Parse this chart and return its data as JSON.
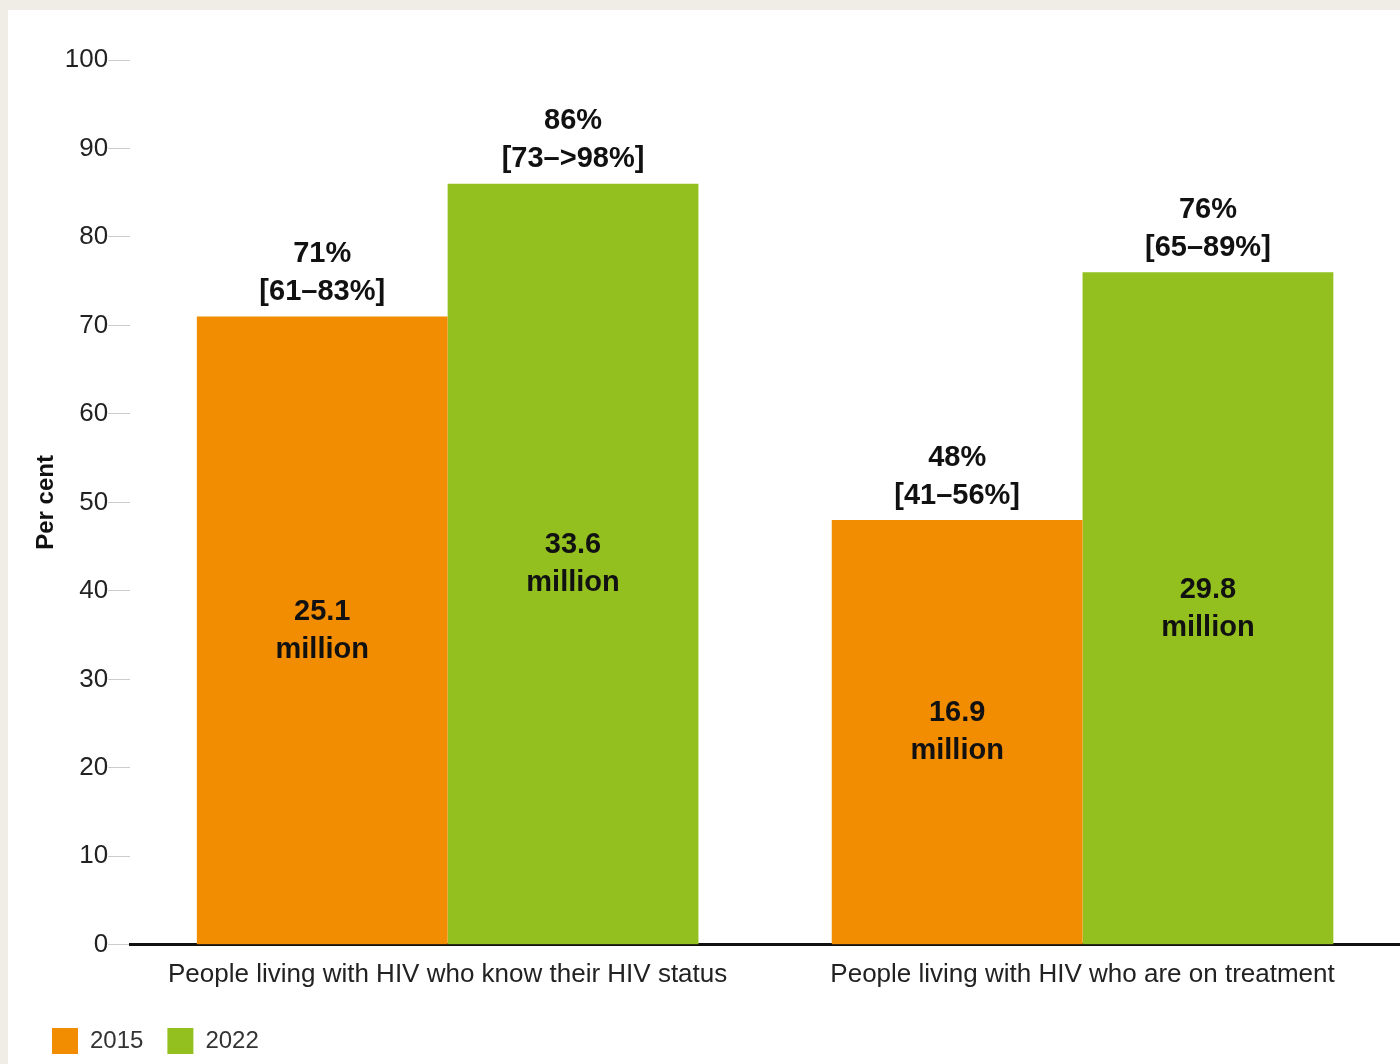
{
  "chart_data": {
    "type": "bar",
    "ylabel": "Per cent",
    "categories": [
      "People living with HIV who know their HIV status",
      "People living with HIV who are on treatment"
    ],
    "series": [
      {
        "name": "2015",
        "color": "#f28c00",
        "values": [
          71,
          48
        ],
        "value_labels": [
          "71%\n[61–83%]",
          "48%\n[41–56%]"
        ]
      },
      {
        "name": "2022",
        "color": "#93c01f",
        "values": [
          86,
          76
        ],
        "value_labels": [
          "86%\n[73–>98%]",
          "76%\n[65–89%]"
        ]
      }
    ],
    "annotations": [
      {
        "text": "25.1\nmillion",
        "x": "People living with HIV who know their HIV status",
        "y": 35.5
      },
      {
        "text": "33.6\nmillion",
        "x": "People living with HIV who know their HIV status",
        "y": 43
      },
      {
        "text": "16.9\nmillion",
        "x": "People living with HIV who are on treatment",
        "y": 24
      },
      {
        "text": "29.8\nmillion",
        "x": "People living with HIV who are on treatment",
        "y": 38
      }
    ],
    "ylim": [
      0,
      100
    ],
    "yticks": [
      0,
      10,
      20,
      30,
      40,
      50,
      60,
      70,
      80,
      90,
      100
    ],
    "legend": "bottom left"
  }
}
